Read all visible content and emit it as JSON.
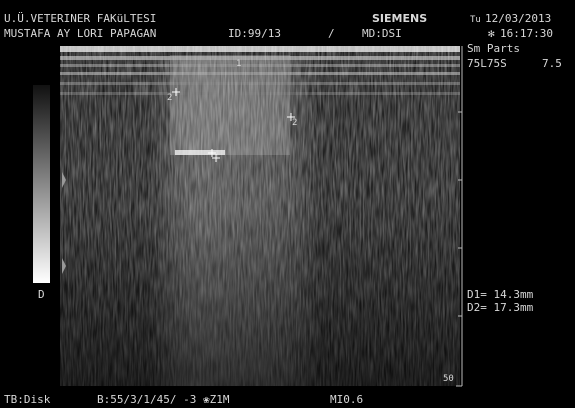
{
  "header": {
    "institution": "U.Ü.VETERINER FAKüLTESI",
    "patient": "MUSTAFA AY LORI PAPAGAN",
    "id": "ID:99/13",
    "slash": "/",
    "brand": "SIEMENS",
    "md": "MD:DSI",
    "day": "Tu",
    "date": "12/03/2013",
    "time": "16:17:30",
    "preset": "Sm Parts",
    "probe": "75L75S",
    "frequency": "7.5"
  },
  "image": {
    "grayscale_label": "D",
    "caliper_1": "1",
    "caliper_2": "2",
    "depth": "50"
  },
  "measurements": [
    "D1= 14.3mm",
    "D2= 17.3mm"
  ],
  "footer": {
    "storage": "TB:Disk",
    "settings": "B:55/3/1/45/ -3 ❀Z1M",
    "mi": "MI0.6"
  }
}
